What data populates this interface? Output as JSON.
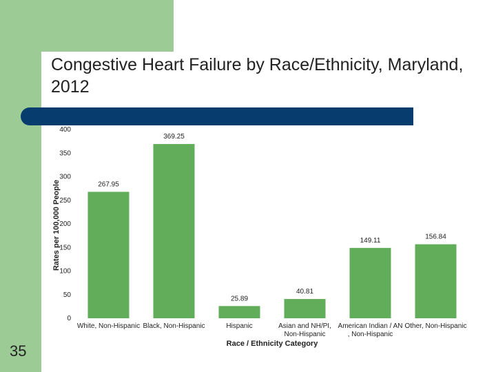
{
  "slide": {
    "title": "Congestive Heart Failure by Race/Ethnicity, Maryland, 2012",
    "number": "35"
  },
  "colors": {
    "accent_green": "#9dcb96",
    "title_bar": "#063d6e",
    "bar_fill": "#62ad5a"
  },
  "chart_data": {
    "type": "bar",
    "title": "",
    "xlabel": "Race / Ethnicity Category",
    "ylabel": "Rates per 100,000 People",
    "ylim": [
      0,
      400
    ],
    "yticks": [
      0,
      50,
      100,
      150,
      200,
      250,
      300,
      350,
      400
    ],
    "grid": false,
    "legend": "none",
    "categories": [
      "White, Non-Hispanic",
      "Black, Non-Hispanic",
      "Hispanic",
      "Asian and NH/PI, Non-Hispanic",
      "American Indian / AN, Non-Hispanic",
      "Other, Non-Hispanic"
    ],
    "category_lines": [
      [
        "White, Non-Hispanic"
      ],
      [
        "Black, Non-Hispanic"
      ],
      [
        "Hispanic"
      ],
      [
        "Asian and NH/PI,",
        "Non-Hispanic"
      ],
      [
        "American Indian / AN",
        ", Non-Hispanic"
      ],
      [
        "Other, Non-Hispanic"
      ]
    ],
    "values": [
      267.95,
      369.25,
      25.89,
      40.81,
      149.11,
      156.84
    ],
    "data_labels": [
      "267.95",
      "369.25",
      "25.89",
      "40.81",
      "149.11",
      "156.84"
    ]
  }
}
